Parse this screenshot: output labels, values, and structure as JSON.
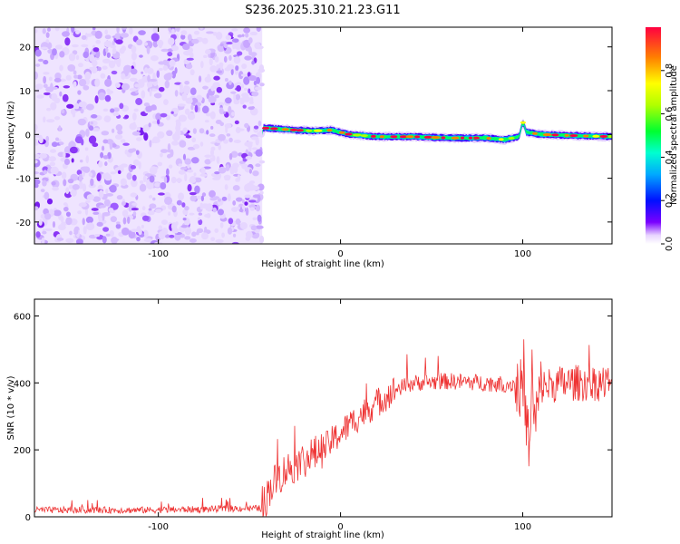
{
  "title": "S236.2025.310.21.23.G11",
  "chart_data": [
    {
      "type": "heatmap",
      "title": "S236.2025.310.21.23.G11",
      "xlabel": "Height of straight line (km)",
      "ylabel": "Frequency (Hz)",
      "xlim": [
        -168,
        149
      ],
      "ylim": [
        -25,
        24.5
      ],
      "xticks": [
        -100,
        0,
        100
      ],
      "yticks": [
        -20,
        -10,
        0,
        10,
        20
      ],
      "noise_region_x": [
        -168,
        -43
      ],
      "signal_band": {
        "x": [
          -43,
          -35,
          -25,
          -15,
          -5,
          5,
          20,
          40,
          60,
          80,
          90,
          98,
          100,
          102,
          110,
          130,
          149
        ],
        "freq_hz": [
          1.5,
          1.3,
          1.0,
          0.8,
          1.0,
          0.0,
          -0.5,
          -0.5,
          -0.8,
          -0.8,
          -1.2,
          -0.5,
          3.0,
          0.5,
          0.0,
          -0.3,
          -0.5
        ],
        "peak_amplitude": [
          0.95,
          0.9,
          0.95,
          0.9,
          0.95,
          0.85,
          0.9,
          0.95,
          1.0,
          1.0,
          0.9,
          0.8,
          0.6,
          0.9,
          0.95,
          0.85,
          0.8
        ]
      },
      "colorbar": {
        "label": "Normalized spectral amplitude",
        "ticks": [
          0.0,
          0.2,
          0.4,
          0.6,
          0.8
        ],
        "range": [
          0.0,
          1.0
        ]
      }
    },
    {
      "type": "line",
      "xlabel": "Height of straight line (km)",
      "ylabel": "SNR (10 * v/v)",
      "xlim": [
        -168,
        149
      ],
      "ylim": [
        0,
        650
      ],
      "xticks": [
        -100,
        0,
        100
      ],
      "yticks": [
        0,
        200,
        400,
        600
      ],
      "series": [
        {
          "name": "SNR",
          "color": "#ee3333",
          "x": [
            -168,
            -140,
            -110,
            -80,
            -55,
            -43,
            -38,
            -30,
            -20,
            -10,
            0,
            10,
            20,
            30,
            40,
            60,
            80,
            95,
            100,
            103,
            104,
            105,
            106,
            110,
            125,
            140,
            149
          ],
          "y": [
            20,
            20,
            20,
            22,
            25,
            25,
            95,
            140,
            170,
            200,
            250,
            300,
            340,
            380,
            400,
            405,
            400,
            395,
            380,
            250,
            150,
            500,
            260,
            390,
            400,
            400,
            400
          ]
        }
      ]
    }
  ]
}
